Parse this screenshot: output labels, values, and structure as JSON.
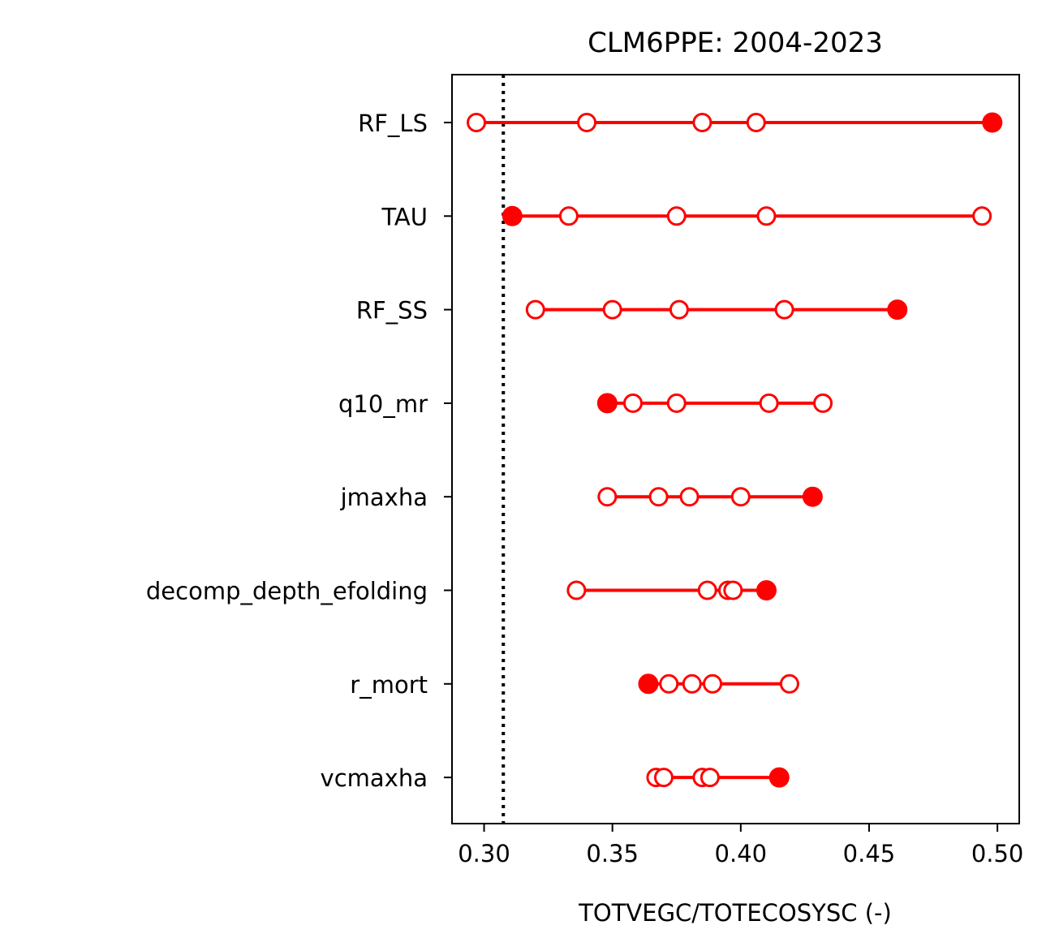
{
  "chart_data": {
    "type": "scatter",
    "title": "CLM6PPE: 2004-2023",
    "xlabel": "TOTVEGC/TOTECOSYSC (-)",
    "ylabel": "",
    "xlim": [
      0.2875,
      0.5085
    ],
    "xticks": [
      "0.30",
      "0.35",
      "0.40",
      "0.45",
      "0.50"
    ],
    "xtick_values": [
      0.3,
      0.35,
      0.4,
      0.45,
      0.5
    ],
    "reference_line": {
      "x": 0.3075,
      "style": "dotted",
      "color": "#000000"
    },
    "marker_color": "#ff0000",
    "grid": false,
    "categories": [
      "RF_LS",
      "TAU",
      "RF_SS",
      "q10_mr",
      "jmaxha",
      "decomp_depth_efolding",
      "r_mort",
      "vcmaxha"
    ],
    "series": [
      {
        "parameter": "RF_LS",
        "values": [
          0.297,
          0.34,
          0.385,
          0.406,
          0.498
        ],
        "filled_index": 4
      },
      {
        "parameter": "TAU",
        "values": [
          0.311,
          0.333,
          0.375,
          0.41,
          0.494
        ],
        "filled_index": 0
      },
      {
        "parameter": "RF_SS",
        "values": [
          0.32,
          0.35,
          0.376,
          0.417,
          0.461
        ],
        "filled_index": 4
      },
      {
        "parameter": "q10_mr",
        "values": [
          0.348,
          0.358,
          0.375,
          0.411,
          0.432
        ],
        "filled_index": 0
      },
      {
        "parameter": "jmaxha",
        "values": [
          0.348,
          0.368,
          0.38,
          0.4,
          0.428
        ],
        "filled_index": 4
      },
      {
        "parameter": "decomp_depth_efolding",
        "values": [
          0.336,
          0.387,
          0.395,
          0.397,
          0.41
        ],
        "filled_index": 4
      },
      {
        "parameter": "r_mort",
        "values": [
          0.364,
          0.372,
          0.381,
          0.389,
          0.419
        ],
        "filled_index": 0
      },
      {
        "parameter": "vcmaxha",
        "values": [
          0.367,
          0.37,
          0.385,
          0.388,
          0.415
        ],
        "filled_index": 4
      }
    ]
  }
}
